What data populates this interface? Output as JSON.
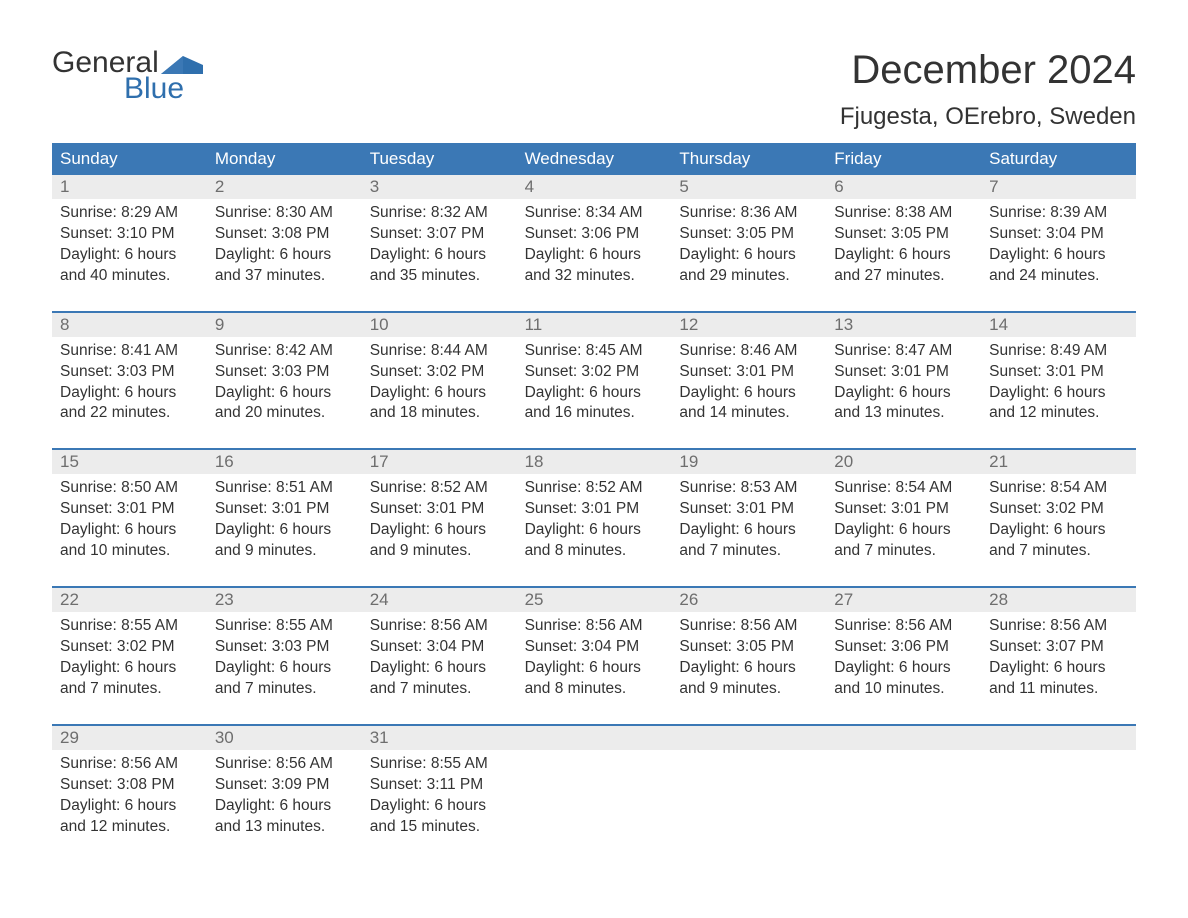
{
  "brand": {
    "general": "General",
    "blue": "Blue",
    "flag_color": "#2f6fad"
  },
  "title": "December 2024",
  "location": "Fjugesta, OErebro, Sweden",
  "colors": {
    "header_bg": "#3b78b5",
    "header_text": "#ffffff",
    "numrow_bg": "#ececec",
    "numrow_text": "#6e6e6e",
    "week_border": "#3b78b5",
    "body_text": "#333333",
    "background": "#ffffff"
  },
  "day_names": [
    "Sunday",
    "Monday",
    "Tuesday",
    "Wednesday",
    "Thursday",
    "Friday",
    "Saturday"
  ],
  "weeks": [
    [
      {
        "n": "1",
        "sunrise": "Sunrise: 8:29 AM",
        "sunset": "Sunset: 3:10 PM",
        "daylight": "Daylight: 6 hours and 40 minutes."
      },
      {
        "n": "2",
        "sunrise": "Sunrise: 8:30 AM",
        "sunset": "Sunset: 3:08 PM",
        "daylight": "Daylight: 6 hours and 37 minutes."
      },
      {
        "n": "3",
        "sunrise": "Sunrise: 8:32 AM",
        "sunset": "Sunset: 3:07 PM",
        "daylight": "Daylight: 6 hours and 35 minutes."
      },
      {
        "n": "4",
        "sunrise": "Sunrise: 8:34 AM",
        "sunset": "Sunset: 3:06 PM",
        "daylight": "Daylight: 6 hours and 32 minutes."
      },
      {
        "n": "5",
        "sunrise": "Sunrise: 8:36 AM",
        "sunset": "Sunset: 3:05 PM",
        "daylight": "Daylight: 6 hours and 29 minutes."
      },
      {
        "n": "6",
        "sunrise": "Sunrise: 8:38 AM",
        "sunset": "Sunset: 3:05 PM",
        "daylight": "Daylight: 6 hours and 27 minutes."
      },
      {
        "n": "7",
        "sunrise": "Sunrise: 8:39 AM",
        "sunset": "Sunset: 3:04 PM",
        "daylight": "Daylight: 6 hours and 24 minutes."
      }
    ],
    [
      {
        "n": "8",
        "sunrise": "Sunrise: 8:41 AM",
        "sunset": "Sunset: 3:03 PM",
        "daylight": "Daylight: 6 hours and 22 minutes."
      },
      {
        "n": "9",
        "sunrise": "Sunrise: 8:42 AM",
        "sunset": "Sunset: 3:03 PM",
        "daylight": "Daylight: 6 hours and 20 minutes."
      },
      {
        "n": "10",
        "sunrise": "Sunrise: 8:44 AM",
        "sunset": "Sunset: 3:02 PM",
        "daylight": "Daylight: 6 hours and 18 minutes."
      },
      {
        "n": "11",
        "sunrise": "Sunrise: 8:45 AM",
        "sunset": "Sunset: 3:02 PM",
        "daylight": "Daylight: 6 hours and 16 minutes."
      },
      {
        "n": "12",
        "sunrise": "Sunrise: 8:46 AM",
        "sunset": "Sunset: 3:01 PM",
        "daylight": "Daylight: 6 hours and 14 minutes."
      },
      {
        "n": "13",
        "sunrise": "Sunrise: 8:47 AM",
        "sunset": "Sunset: 3:01 PM",
        "daylight": "Daylight: 6 hours and 13 minutes."
      },
      {
        "n": "14",
        "sunrise": "Sunrise: 8:49 AM",
        "sunset": "Sunset: 3:01 PM",
        "daylight": "Daylight: 6 hours and 12 minutes."
      }
    ],
    [
      {
        "n": "15",
        "sunrise": "Sunrise: 8:50 AM",
        "sunset": "Sunset: 3:01 PM",
        "daylight": "Daylight: 6 hours and 10 minutes."
      },
      {
        "n": "16",
        "sunrise": "Sunrise: 8:51 AM",
        "sunset": "Sunset: 3:01 PM",
        "daylight": "Daylight: 6 hours and 9 minutes."
      },
      {
        "n": "17",
        "sunrise": "Sunrise: 8:52 AM",
        "sunset": "Sunset: 3:01 PM",
        "daylight": "Daylight: 6 hours and 9 minutes."
      },
      {
        "n": "18",
        "sunrise": "Sunrise: 8:52 AM",
        "sunset": "Sunset: 3:01 PM",
        "daylight": "Daylight: 6 hours and 8 minutes."
      },
      {
        "n": "19",
        "sunrise": "Sunrise: 8:53 AM",
        "sunset": "Sunset: 3:01 PM",
        "daylight": "Daylight: 6 hours and 7 minutes."
      },
      {
        "n": "20",
        "sunrise": "Sunrise: 8:54 AM",
        "sunset": "Sunset: 3:01 PM",
        "daylight": "Daylight: 6 hours and 7 minutes."
      },
      {
        "n": "21",
        "sunrise": "Sunrise: 8:54 AM",
        "sunset": "Sunset: 3:02 PM",
        "daylight": "Daylight: 6 hours and 7 minutes."
      }
    ],
    [
      {
        "n": "22",
        "sunrise": "Sunrise: 8:55 AM",
        "sunset": "Sunset: 3:02 PM",
        "daylight": "Daylight: 6 hours and 7 minutes."
      },
      {
        "n": "23",
        "sunrise": "Sunrise: 8:55 AM",
        "sunset": "Sunset: 3:03 PM",
        "daylight": "Daylight: 6 hours and 7 minutes."
      },
      {
        "n": "24",
        "sunrise": "Sunrise: 8:56 AM",
        "sunset": "Sunset: 3:04 PM",
        "daylight": "Daylight: 6 hours and 7 minutes."
      },
      {
        "n": "25",
        "sunrise": "Sunrise: 8:56 AM",
        "sunset": "Sunset: 3:04 PM",
        "daylight": "Daylight: 6 hours and 8 minutes."
      },
      {
        "n": "26",
        "sunrise": "Sunrise: 8:56 AM",
        "sunset": "Sunset: 3:05 PM",
        "daylight": "Daylight: 6 hours and 9 minutes."
      },
      {
        "n": "27",
        "sunrise": "Sunrise: 8:56 AM",
        "sunset": "Sunset: 3:06 PM",
        "daylight": "Daylight: 6 hours and 10 minutes."
      },
      {
        "n": "28",
        "sunrise": "Sunrise: 8:56 AM",
        "sunset": "Sunset: 3:07 PM",
        "daylight": "Daylight: 6 hours and 11 minutes."
      }
    ],
    [
      {
        "n": "29",
        "sunrise": "Sunrise: 8:56 AM",
        "sunset": "Sunset: 3:08 PM",
        "daylight": "Daylight: 6 hours and 12 minutes."
      },
      {
        "n": "30",
        "sunrise": "Sunrise: 8:56 AM",
        "sunset": "Sunset: 3:09 PM",
        "daylight": "Daylight: 6 hours and 13 minutes."
      },
      {
        "n": "31",
        "sunrise": "Sunrise: 8:55 AM",
        "sunset": "Sunset: 3:11 PM",
        "daylight": "Daylight: 6 hours and 15 minutes."
      },
      null,
      null,
      null,
      null
    ]
  ]
}
